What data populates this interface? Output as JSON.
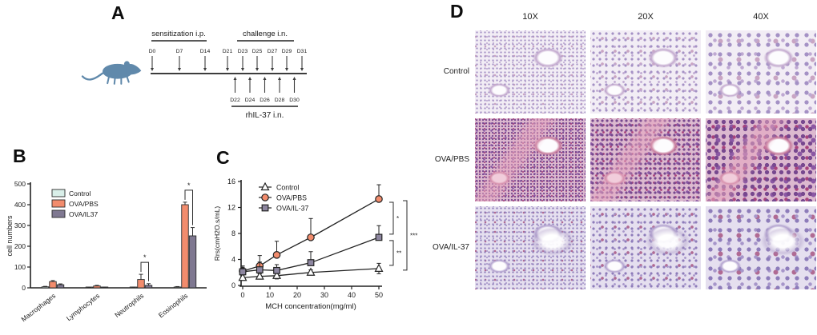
{
  "figure": {
    "panels": {
      "a": "A",
      "b": "B",
      "c": "C",
      "d": "D"
    }
  },
  "panel_a": {
    "sensitization_label": "sensitization i.p.",
    "challenge_label": "challenge i.n.",
    "treatment_label": "rhIL-37 i.n.",
    "sensitization_days": [
      "D0",
      "D7",
      "D14"
    ],
    "challenge_days": [
      "D21",
      "D23",
      "D25",
      "D27",
      "D29",
      "D31"
    ],
    "treatment_days": [
      "D22",
      "D24",
      "D26",
      "D28",
      "D30"
    ],
    "mouse_color": "#6089ab"
  },
  "chart_data": [
    {
      "type": "bar",
      "title": "",
      "xlabel": "",
      "ylabel": "cell numbers",
      "ylim": [
        0,
        500
      ],
      "yticks": [
        0,
        100,
        200,
        300,
        400,
        500
      ],
      "grid": false,
      "legend_position": "upper-left",
      "categories": [
        "Macrophages",
        "Lymphocytes",
        "Neutrophils",
        "Eosinophils"
      ],
      "series": [
        {
          "name": "Control",
          "color": "#d9efe9",
          "values": [
            5,
            1,
            2,
            4
          ],
          "errors": [
            2,
            1,
            1,
            2
          ]
        },
        {
          "name": "OVA/PBS",
          "color": "#f28c6d",
          "values": [
            30,
            9,
            40,
            400
          ],
          "errors": [
            5,
            3,
            25,
            12
          ]
        },
        {
          "name": "OVA/IL37",
          "color": "#7f7891",
          "values": [
            15,
            2,
            12,
            250
          ],
          "errors": [
            4,
            1,
            8,
            40
          ]
        }
      ],
      "significance": [
        {
          "category": "Neutrophils",
          "between": [
            "OVA/PBS",
            "OVA/IL37"
          ],
          "label": "*"
        },
        {
          "category": "Eosinophils",
          "between": [
            "OVA/PBS",
            "OVA/IL37"
          ],
          "label": "*"
        }
      ]
    },
    {
      "type": "line",
      "title": "",
      "xlabel": "MCH concentration(mg/ml)",
      "ylabel": "Rrs(cmH2O.s/mL)",
      "xlim": [
        0,
        50
      ],
      "ylim": [
        0,
        16
      ],
      "xticks": [
        0,
        10,
        20,
        30,
        40,
        50
      ],
      "yticks": [
        0,
        4,
        8,
        12,
        16
      ],
      "grid": false,
      "legend_position": "upper-left",
      "x": [
        0,
        6.25,
        12.5,
        25,
        50
      ],
      "series": [
        {
          "name": "Control",
          "marker": "triangle",
          "color": "#ffffff",
          "values": [
            1.2,
            1.4,
            1.5,
            2.0,
            2.6
          ],
          "errors": [
            0.4,
            0.4,
            0.5,
            0.4,
            0.8
          ]
        },
        {
          "name": "OVA/PBS",
          "marker": "circle",
          "color": "#f28c6d",
          "values": [
            2.2,
            3.0,
            4.7,
            7.4,
            13.3
          ],
          "errors": [
            0.8,
            1.6,
            2.1,
            2.9,
            2.2
          ]
        },
        {
          "name": "OVA/IL-37",
          "marker": "square",
          "color": "#8d86a0",
          "values": [
            2.1,
            2.4,
            2.3,
            3.5,
            7.4
          ],
          "errors": [
            0.7,
            1.2,
            0.9,
            1.7,
            1.8
          ]
        }
      ],
      "significance": [
        {
          "between": [
            "OVA/PBS",
            "OVA/IL-37"
          ],
          "label": "*"
        },
        {
          "between": [
            "OVA/IL-37",
            "Control"
          ],
          "label": "**"
        },
        {
          "between": [
            "OVA/PBS",
            "Control"
          ],
          "label": "***"
        }
      ]
    }
  ],
  "panel_d": {
    "columns": [
      "10X",
      "20X",
      "40X"
    ],
    "rows": [
      "Control",
      "OVA/PBS",
      "OVA/IL-37"
    ]
  }
}
